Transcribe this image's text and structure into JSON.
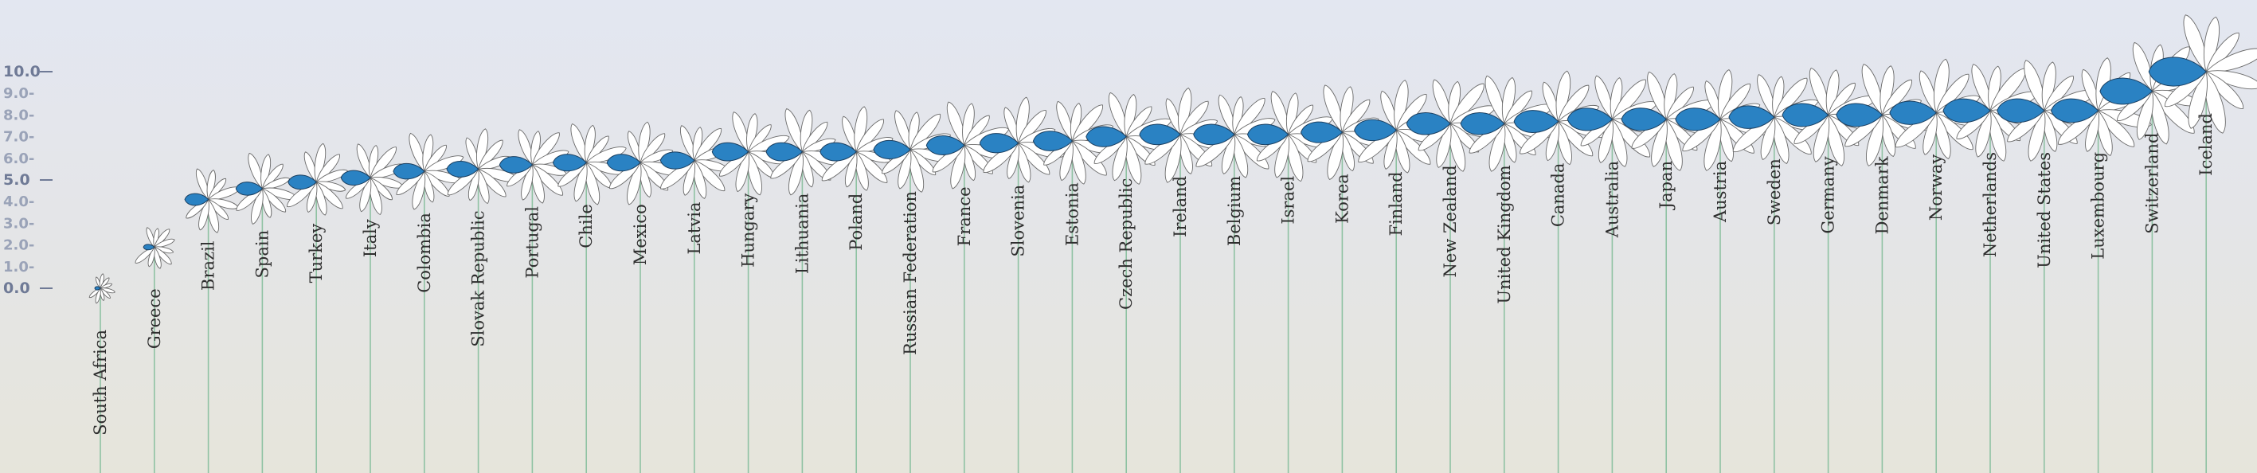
{
  "chart_data": {
    "type": "scatter",
    "ylim": [
      0,
      10
    ],
    "y_ticks": [
      {
        "value": 10,
        "label": "10.0",
        "major": true
      },
      {
        "value": 9,
        "label": "9.0",
        "major": false
      },
      {
        "value": 8,
        "label": "8.0",
        "major": false
      },
      {
        "value": 7,
        "label": "7.0",
        "major": false
      },
      {
        "value": 6,
        "label": "6.0",
        "major": false
      },
      {
        "value": 5,
        "label": "5.0",
        "major": true
      },
      {
        "value": 4,
        "label": "4.0",
        "major": false
      },
      {
        "value": 3,
        "label": "3.0",
        "major": false
      },
      {
        "value": 2,
        "label": "2.0",
        "major": false
      },
      {
        "value": 1,
        "label": "1.0",
        "major": false
      },
      {
        "value": 0,
        "label": "0.0",
        "major": true
      }
    ],
    "categories": [
      "South Africa",
      "Greece",
      "Brazil",
      "Spain",
      "Turkey",
      "Italy",
      "Colombia",
      "Slovak Republic",
      "Portugal",
      "Chile",
      "Mexico",
      "Latvia",
      "Hungary",
      "Lithuania",
      "Poland",
      "Russian Federation",
      "France",
      "Slovenia",
      "Estonia",
      "Czech Republic",
      "Ireland",
      "Belgium",
      "Israel",
      "Korea",
      "Finland",
      "New Zealand",
      "United Kingdom",
      "Canada",
      "Australia",
      "Japan",
      "Austria",
      "Sweden",
      "Germany",
      "Denmark",
      "Norway",
      "Netherlands",
      "United States",
      "Luxembourg",
      "Switzerland",
      "Iceland"
    ],
    "values": [
      0.0,
      1.9,
      4.1,
      4.6,
      4.9,
      5.1,
      5.4,
      5.5,
      5.7,
      5.8,
      5.8,
      5.9,
      6.3,
      6.3,
      6.3,
      6.4,
      6.6,
      6.7,
      6.8,
      7.0,
      7.1,
      7.1,
      7.1,
      7.2,
      7.3,
      7.6,
      7.6,
      7.7,
      7.8,
      7.8,
      7.8,
      7.9,
      8.0,
      8.0,
      8.1,
      8.2,
      8.2,
      8.2,
      9.1,
      10.0
    ],
    "petal_color": "#2a82c3",
    "stem_color": "#8fc2a3"
  }
}
